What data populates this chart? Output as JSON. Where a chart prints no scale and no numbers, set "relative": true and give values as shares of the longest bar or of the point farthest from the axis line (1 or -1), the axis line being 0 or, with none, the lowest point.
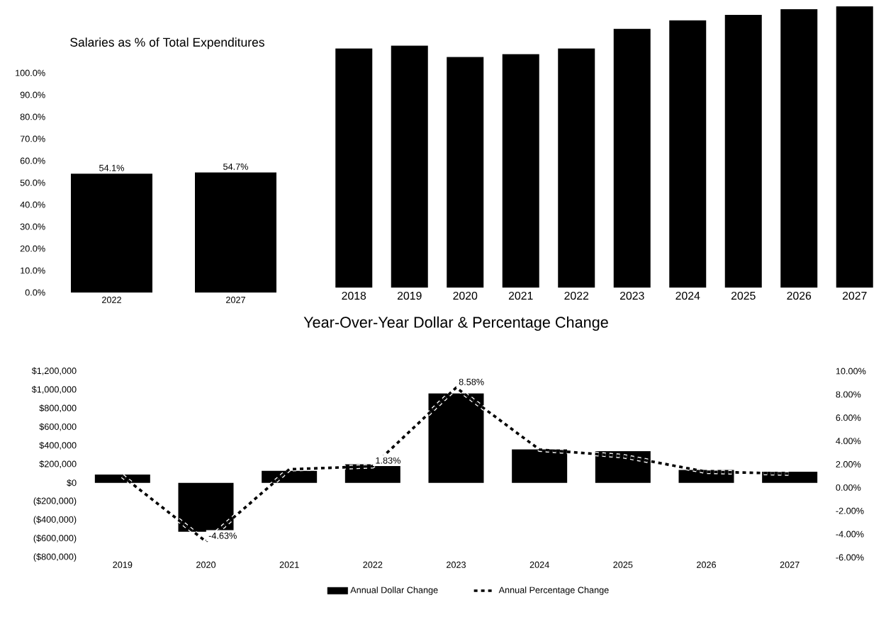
{
  "chart_data": [
    {
      "type": "bar",
      "title": "Salaries as % of Total Expenditures",
      "categories": [
        "2022",
        "2027"
      ],
      "values": [
        54.1,
        54.7
      ],
      "color": "#000000",
      "value_labels": [
        "54.1%",
        "54.7%"
      ],
      "ylim": [
        0,
        100
      ],
      "yticks": [
        {
          "value": 0,
          "label": "0.0%"
        },
        {
          "value": 10,
          "label": "10.0%"
        },
        {
          "value": 20,
          "label": "20.0%"
        },
        {
          "value": 30,
          "label": "30.0%"
        },
        {
          "value": 40,
          "label": "40.0%"
        },
        {
          "value": 50,
          "label": "50.0%"
        },
        {
          "value": 60,
          "label": "60.0%"
        },
        {
          "value": 70,
          "label": "70.0%"
        },
        {
          "value": 80,
          "label": "80.0%"
        },
        {
          "value": 90,
          "label": "90.0%"
        },
        {
          "value": 100,
          "label": "100.0%"
        }
      ]
    },
    {
      "type": "bar",
      "relative": true,
      "tick_labels": "x",
      "categories": [
        "2018",
        "2019",
        "2020",
        "2021",
        "2022",
        "2023",
        "2024",
        "2025",
        "2026",
        "2027"
      ],
      "values": [
        0.85,
        0.86,
        0.82,
        0.83,
        0.85,
        0.92,
        0.95,
        0.97,
        0.99,
        1
      ],
      "color": "#000000"
    },
    {
      "type": "bar",
      "title": "Year-Over-Year Dollar & Percentage Change",
      "categories": [
        "2019",
        "2020",
        "2021",
        "2022",
        "2023",
        "2024",
        "2025",
        "2026",
        "2027"
      ],
      "series": [
        {
          "name": "Annual Dollar Change",
          "color": "#000000",
          "values": [
            90000,
            -525000,
            130000,
            200000,
            960000,
            360000,
            340000,
            140000,
            120000
          ]
        },
        {
          "name": "Annual Percentage Change",
          "type": "line",
          "axis": "y2",
          "line_style": "dashed",
          "color": "#000000",
          "values": [
            0.98,
            -4.63,
            1.57,
            1.83,
            8.58,
            3.26,
            2.7,
            1.36,
            1.2
          ],
          "value_labels": [
            null,
            "-4.63%",
            null,
            "1.83%",
            "8.58%",
            null,
            null,
            null,
            null
          ]
        }
      ],
      "ylim": [
        -800000,
        1200000
      ],
      "yticks": [
        {
          "value": -800000,
          "label": "($800,000)"
        },
        {
          "value": -600000,
          "label": "($600,000)"
        },
        {
          "value": -400000,
          "label": "($400,000)"
        },
        {
          "value": -200000,
          "label": "($200,000)"
        },
        {
          "value": 0,
          "label": "$0"
        },
        {
          "value": 200000,
          "label": "$200,000"
        },
        {
          "value": 400000,
          "label": "$400,000"
        },
        {
          "value": 600000,
          "label": "$600,000"
        },
        {
          "value": 800000,
          "label": "$800,000"
        },
        {
          "value": 1000000,
          "label": "$1,000,000"
        },
        {
          "value": 1200000,
          "label": "$1,200,000"
        }
      ],
      "y2lim": [
        -6,
        10
      ],
      "y2ticks": [
        {
          "value": -6,
          "label": "-6.00%"
        },
        {
          "value": -4,
          "label": "-4.00%"
        },
        {
          "value": -2,
          "label": "-2.00%"
        },
        {
          "value": 0,
          "label": "0.00%"
        },
        {
          "value": 2,
          "label": "2.00%"
        },
        {
          "value": 4,
          "label": "4.00%"
        },
        {
          "value": 6,
          "label": "6.00%"
        },
        {
          "value": 8,
          "label": "8.00%"
        },
        {
          "value": 10,
          "label": "10.00%"
        }
      ],
      "legend": "bottom"
    }
  ]
}
